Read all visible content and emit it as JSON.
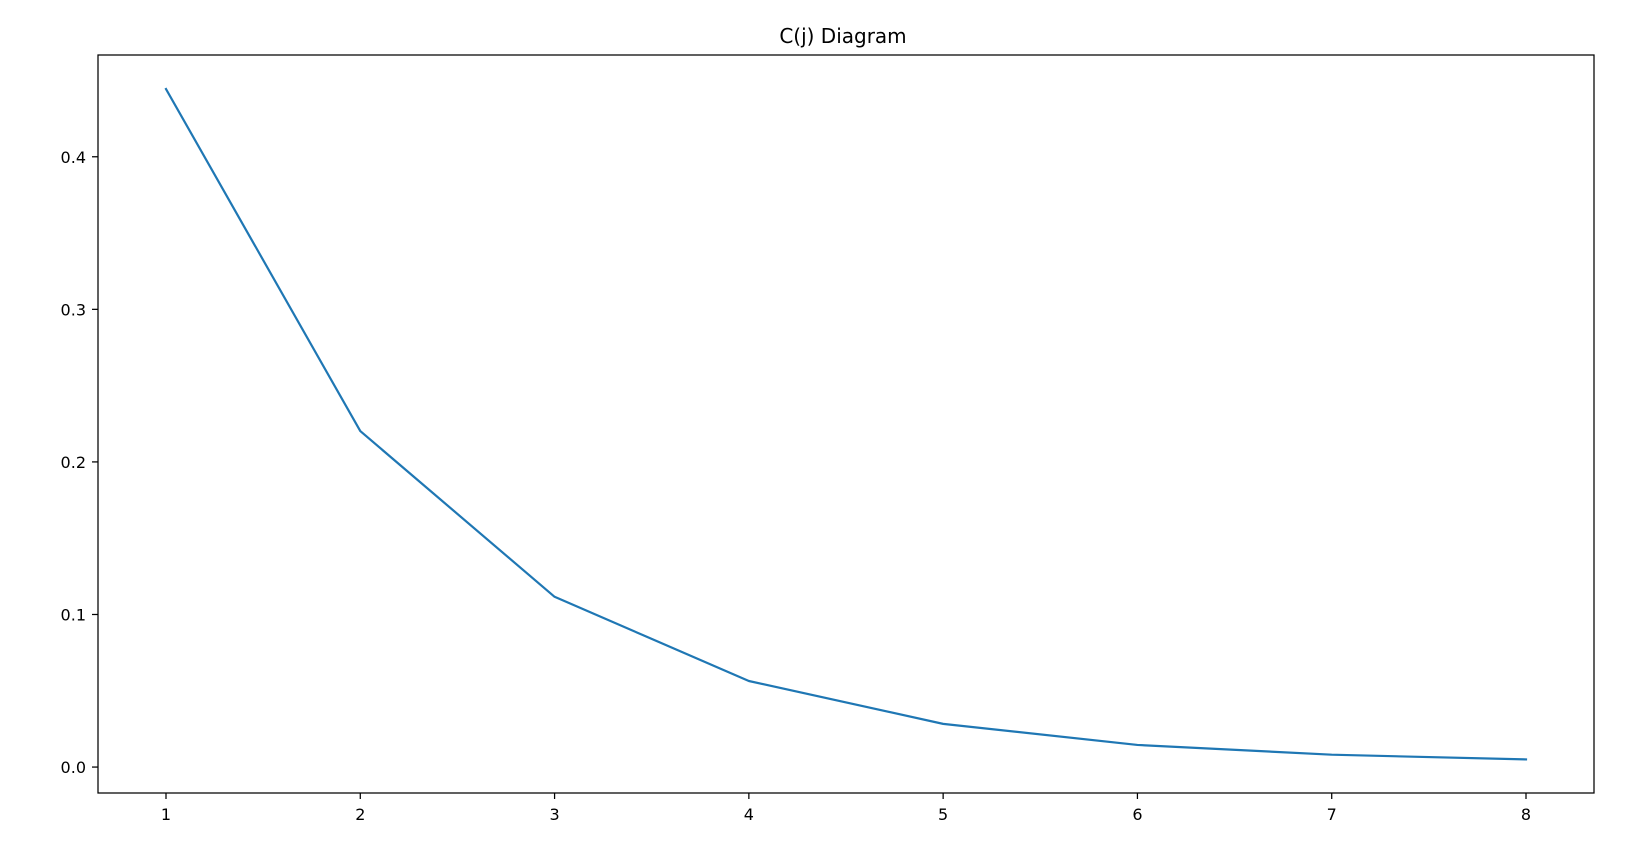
{
  "chart_data": {
    "type": "line",
    "title": "C(j) Diagram",
    "xlabel": "",
    "ylabel": "",
    "x": [
      1,
      2,
      3,
      4,
      5,
      6,
      7,
      8
    ],
    "series": [
      {
        "values": [
          0.4444,
          0.2202,
          0.1116,
          0.0564,
          0.0283,
          0.0145,
          0.0081,
          0.005
        ],
        "color": "#1f77b4"
      }
    ],
    "xlim": [
      0.65,
      8.35
    ],
    "ylim": [
      -0.017,
      0.4667
    ],
    "xticks": [
      1,
      2,
      3,
      4,
      5,
      6,
      7,
      8
    ],
    "xtick_labels": [
      "1",
      "2",
      "3",
      "4",
      "5",
      "6",
      "7",
      "8"
    ],
    "yticks": [
      0.0,
      0.1,
      0.2,
      0.3,
      0.4
    ],
    "ytick_labels": [
      "0.0",
      "0.1",
      "0.2",
      "0.3",
      "0.4"
    ],
    "grid": false,
    "legend": "none"
  }
}
